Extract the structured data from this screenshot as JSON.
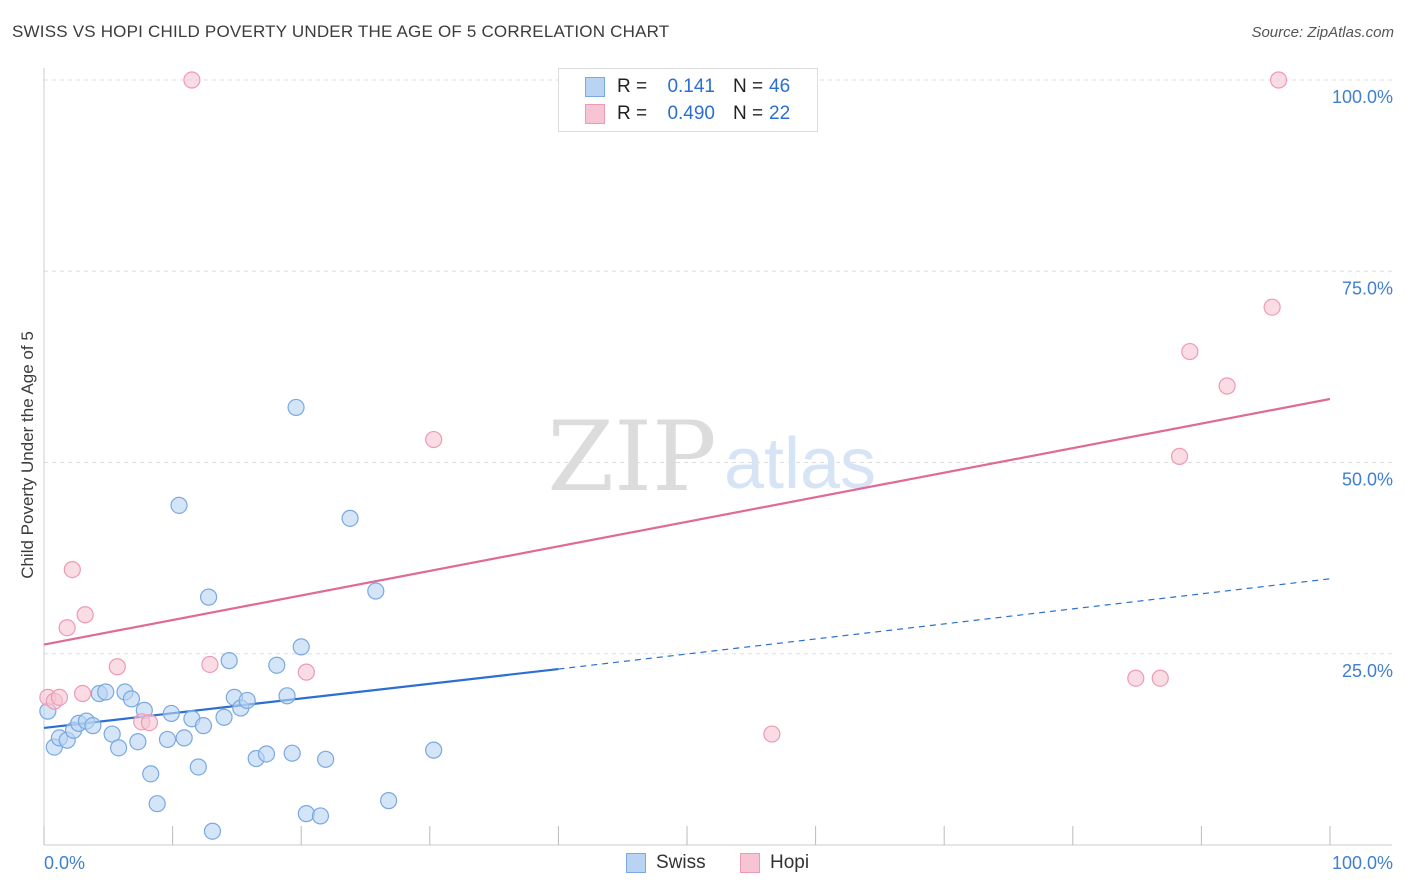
{
  "header": {
    "title": "SWISS VS HOPI CHILD POVERTY UNDER THE AGE OF 5 CORRELATION CHART",
    "source": "Source: ZipAtlas.com"
  },
  "legend": {
    "swiss": {
      "r_label": "R =",
      "r_value": "0.141",
      "n_label": "N =",
      "n_value": "46"
    },
    "hopi": {
      "r_label": "R =",
      "r_value": "0.490",
      "n_label": "N =",
      "n_value": "22"
    }
  },
  "bottom_legend": {
    "swiss": "Swiss",
    "hopi": "Hopi"
  },
  "watermark": {
    "zip": "ZIP",
    "atlas": "atlas"
  },
  "colors": {
    "swiss_fill": "#b9d3f3",
    "swiss_stroke": "#7aa8e0",
    "swiss_line": "#2b6fd1",
    "hopi_fill": "#f7c4d3",
    "hopi_stroke": "#ee9ab4",
    "hopi_line": "#e06a95",
    "axis_text": "#3f7fd0",
    "grid": "#dddddd"
  },
  "chart_data": {
    "type": "scatter",
    "title": "SWISS VS HOPI CHILD POVERTY UNDER THE AGE OF 5 CORRELATION CHART",
    "xlabel": "",
    "ylabel": "Child Poverty Under the Age of 5",
    "xlim": [
      0,
      100
    ],
    "ylim": [
      0,
      100
    ],
    "x_tick_labels": [
      "0.0%",
      "100.0%"
    ],
    "y_ticks": [
      25,
      50,
      75,
      100
    ],
    "y_tick_labels": [
      "25.0%",
      "50.0%",
      "75.0%",
      "100.0%"
    ],
    "series": [
      {
        "name": "Swiss",
        "r": 0.141,
        "n": 46,
        "points": [
          [
            0.3,
            17.5
          ],
          [
            0.8,
            12.8
          ],
          [
            1.2,
            14.0
          ],
          [
            1.8,
            13.7
          ],
          [
            2.3,
            15.0
          ],
          [
            2.7,
            15.9
          ],
          [
            3.3,
            16.2
          ],
          [
            3.8,
            15.6
          ],
          [
            4.3,
            19.8
          ],
          [
            4.8,
            20.0
          ],
          [
            5.3,
            14.5
          ],
          [
            5.8,
            12.7
          ],
          [
            6.3,
            20.0
          ],
          [
            6.8,
            19.1
          ],
          [
            7.3,
            13.5
          ],
          [
            7.8,
            17.6
          ],
          [
            8.3,
            9.3
          ],
          [
            8.8,
            5.4
          ],
          [
            9.6,
            13.8
          ],
          [
            9.9,
            17.2
          ],
          [
            10.5,
            44.4
          ],
          [
            10.9,
            14.0
          ],
          [
            11.5,
            16.5
          ],
          [
            12.0,
            10.2
          ],
          [
            12.4,
            15.6
          ],
          [
            12.8,
            32.4
          ],
          [
            13.1,
            1.8
          ],
          [
            14.0,
            16.7
          ],
          [
            14.4,
            24.1
          ],
          [
            14.8,
            19.3
          ],
          [
            15.3,
            17.9
          ],
          [
            15.8,
            18.9
          ],
          [
            16.5,
            11.3
          ],
          [
            17.3,
            11.9
          ],
          [
            18.1,
            23.5
          ],
          [
            18.9,
            19.5
          ],
          [
            19.3,
            12.0
          ],
          [
            19.6,
            57.2
          ],
          [
            20.0,
            25.9
          ],
          [
            20.4,
            4.1
          ],
          [
            21.5,
            3.8
          ],
          [
            21.9,
            11.2
          ],
          [
            23.8,
            42.7
          ],
          [
            25.8,
            33.2
          ],
          [
            26.8,
            5.8
          ],
          [
            30.3,
            12.4
          ]
        ],
        "trend": {
          "x0": 0,
          "y0": 15.3,
          "x1": 40,
          "y1": 23.0,
          "dashed_to": [
            100,
            34.8
          ]
        }
      },
      {
        "name": "Hopi",
        "r": 0.49,
        "n": 22,
        "points": [
          [
            0.3,
            19.3
          ],
          [
            0.8,
            18.8
          ],
          [
            1.2,
            19.3
          ],
          [
            1.8,
            28.4
          ],
          [
            2.2,
            36.0
          ],
          [
            3.0,
            19.8
          ],
          [
            3.2,
            30.1
          ],
          [
            5.7,
            23.3
          ],
          [
            7.6,
            16.1
          ],
          [
            8.2,
            16.0
          ],
          [
            11.5,
            100.0
          ],
          [
            12.9,
            23.6
          ],
          [
            20.4,
            22.6
          ],
          [
            30.3,
            53.0
          ],
          [
            56.6,
            14.5
          ],
          [
            84.9,
            21.8
          ],
          [
            86.8,
            21.8
          ],
          [
            88.3,
            50.8
          ],
          [
            89.1,
            64.5
          ],
          [
            92.0,
            60.0
          ],
          [
            95.5,
            70.3
          ],
          [
            96.0,
            100.0
          ]
        ],
        "trend": {
          "x0": 0,
          "y0": 26.2,
          "x1": 100,
          "y1": 58.3
        }
      }
    ]
  }
}
